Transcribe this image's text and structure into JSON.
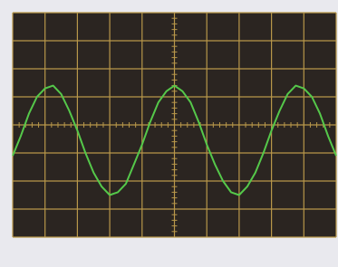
{
  "chart_data": {
    "type": "line",
    "x": [
      0,
      0.25,
      0.5,
      0.75,
      1,
      1.25,
      1.5,
      1.75,
      2,
      2.25,
      2.5,
      2.75,
      3,
      3.25,
      3.5,
      3.75,
      4,
      4.25,
      4.5,
      4.75,
      5,
      5.25,
      5.5,
      5.75,
      6,
      6.25,
      6.5,
      6.75,
      7,
      7.25,
      7.5,
      7.75,
      8,
      8.25,
      8.5,
      8.75,
      9,
      9.25,
      9.5,
      9.75,
      10
    ],
    "values": [
      -1.1,
      -0.4,
      0.4,
      1.0,
      1.3,
      1.4,
      1.1,
      0.5,
      -0.2,
      -1.0,
      -1.7,
      -2.2,
      -2.5,
      -2.4,
      -2.1,
      -1.4,
      -0.7,
      0.1,
      0.8,
      1.2,
      1.4,
      1.2,
      0.8,
      0.1,
      -0.7,
      -1.4,
      -2.0,
      -2.4,
      -2.5,
      -2.2,
      -1.7,
      -1.0,
      -0.2,
      0.5,
      1.1,
      1.4,
      1.3,
      1.0,
      0.4,
      -0.4,
      -1.1
    ],
    "color": "#55c84a",
    "xlim": [
      0,
      10
    ],
    "ylim": [
      -4,
      4
    ],
    "xticks": [
      0,
      1,
      2,
      3,
      4,
      5,
      6,
      7,
      8,
      9,
      10
    ],
    "yticks": [
      -4,
      -3,
      -2,
      -1,
      0,
      1,
      2,
      3,
      4
    ],
    "grid": true,
    "grid_color": "#b8974a",
    "screen_color": "#2b2521"
  }
}
